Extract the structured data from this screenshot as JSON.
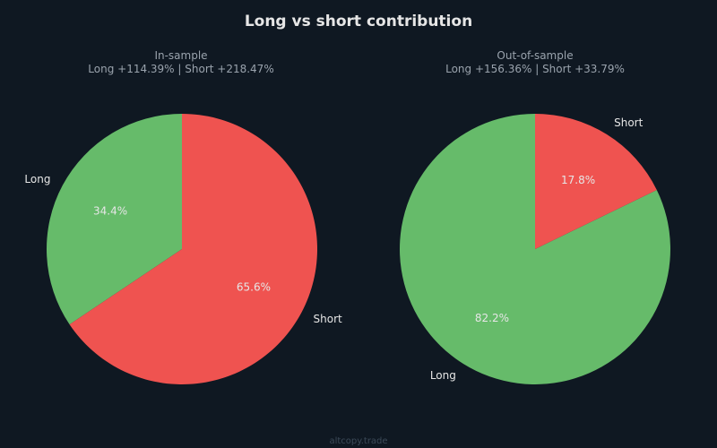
{
  "page": {
    "title": "Long vs short contribution",
    "watermark": "altcopy.trade",
    "colors": {
      "background": "#0f1822",
      "long": "#66bb6a",
      "short": "#ef5350",
      "title_text": "#e6e6e6",
      "subtitle_text": "#9aa3ad",
      "label_text": "#e6e6e6",
      "pct_text": "#e6e6e6",
      "watermark_text": "#3c4a58"
    }
  },
  "chart_data": [
    {
      "type": "pie",
      "title": "In-sample",
      "subtitle": "Long +114.39% | Short +218.47%",
      "start_angle_deg": 90,
      "direction": "counterclockwise",
      "slices": [
        {
          "label": "Long",
          "value": 34.4,
          "pct_label": "34.4%",
          "color": "#66bb6a"
        },
        {
          "label": "Short",
          "value": 65.6,
          "pct_label": "65.6%",
          "color": "#ef5350"
        }
      ]
    },
    {
      "type": "pie",
      "title": "Out-of-sample",
      "subtitle": "Long +156.36% | Short +33.79%",
      "start_angle_deg": 90,
      "direction": "counterclockwise",
      "slices": [
        {
          "label": "Long",
          "value": 82.2,
          "pct_label": "82.2%",
          "color": "#66bb6a"
        },
        {
          "label": "Short",
          "value": 17.8,
          "pct_label": "17.8%",
          "color": "#ef5350"
        }
      ]
    }
  ]
}
